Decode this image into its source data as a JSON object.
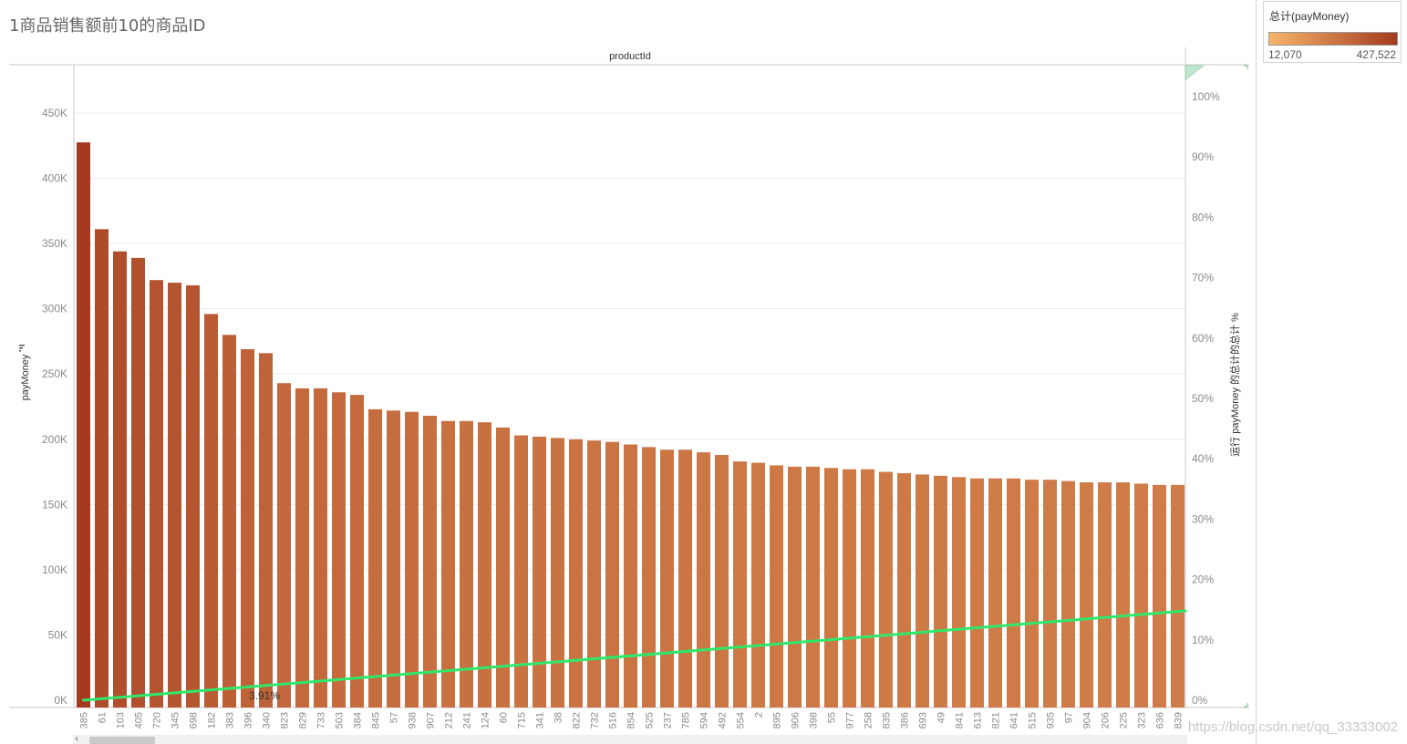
{
  "title": "1商品销售额前10的商品ID",
  "legend": {
    "title": "总计(payMoney)",
    "min_label": "12,070",
    "max_label": "427,522",
    "min_value": 12070,
    "max_value": 427522,
    "color_low": "#f6b56b",
    "color_high": "#a33a1f"
  },
  "watermark": "https://blog.csdn.net/qq_33333002",
  "colors": {
    "line": "#2ee86b",
    "grid": "#ededed",
    "axis": "#c8c8c8"
  },
  "chart_data": {
    "type": "bar",
    "header": "productId",
    "ylabel": "payMoney",
    "y2label": "运行 payMoney 的总计的总计 %",
    "ylim": [
      0,
      480000
    ],
    "y2lim": [
      0,
      1
    ],
    "y_ticks": [
      0,
      50000,
      100000,
      150000,
      200000,
      250000,
      300000,
      350000,
      400000,
      450000
    ],
    "y_tick_labels": [
      "0K",
      "50K",
      "100K",
      "150K",
      "200K",
      "250K",
      "300K",
      "350K",
      "400K",
      "450K"
    ],
    "y2_ticks": [
      0,
      0.1,
      0.2,
      0.3,
      0.4,
      0.5,
      0.6,
      0.7,
      0.8,
      0.9,
      1.0
    ],
    "y2_tick_labels": [
      "0%",
      "10%",
      "20%",
      "30%",
      "40%",
      "50%",
      "60%",
      "70%",
      "80%",
      "90%",
      "100%"
    ],
    "grid": true,
    "categories": [
      "385",
      "61",
      "103",
      "405",
      "720",
      "345",
      "698",
      "182",
      "383",
      "396",
      "340",
      "823",
      "829",
      "733",
      "503",
      "384",
      "845",
      "57",
      "938",
      "907",
      "212",
      "241",
      "124",
      "60",
      "715",
      "341",
      "38",
      "822",
      "732",
      "516",
      "854",
      "525",
      "237",
      "785",
      "594",
      "492",
      "554",
      "2",
      "895",
      "906",
      "398",
      "55",
      "977",
      "258",
      "835",
      "386",
      "693",
      "49",
      "841",
      "613",
      "821",
      "641",
      "515",
      "935",
      "97",
      "904",
      "206",
      "225",
      "323",
      "636",
      "839"
    ],
    "values": [
      427522,
      361000,
      344000,
      339000,
      322000,
      320000,
      318000,
      296000,
      280000,
      269000,
      266000,
      243000,
      239000,
      239000,
      236000,
      234000,
      223000,
      222000,
      221000,
      218000,
      214000,
      214000,
      213000,
      209000,
      203000,
      202000,
      201000,
      200000,
      199000,
      198000,
      196000,
      194000,
      192000,
      192000,
      190000,
      188000,
      183000,
      182000,
      180000,
      179000,
      179000,
      178000,
      177000,
      177000,
      175000,
      174000,
      173000,
      172000,
      171000,
      170000,
      170000,
      170000,
      169000,
      169000,
      168000,
      167000,
      167000,
      167000,
      166000,
      165000,
      165000
    ],
    "running_pct": {
      "name": "运行 payMoney 的总计的总计 %",
      "start": 0.0,
      "end": 0.148,
      "annotation": {
        "label": "3.91%",
        "value": 0.0391
      }
    }
  }
}
